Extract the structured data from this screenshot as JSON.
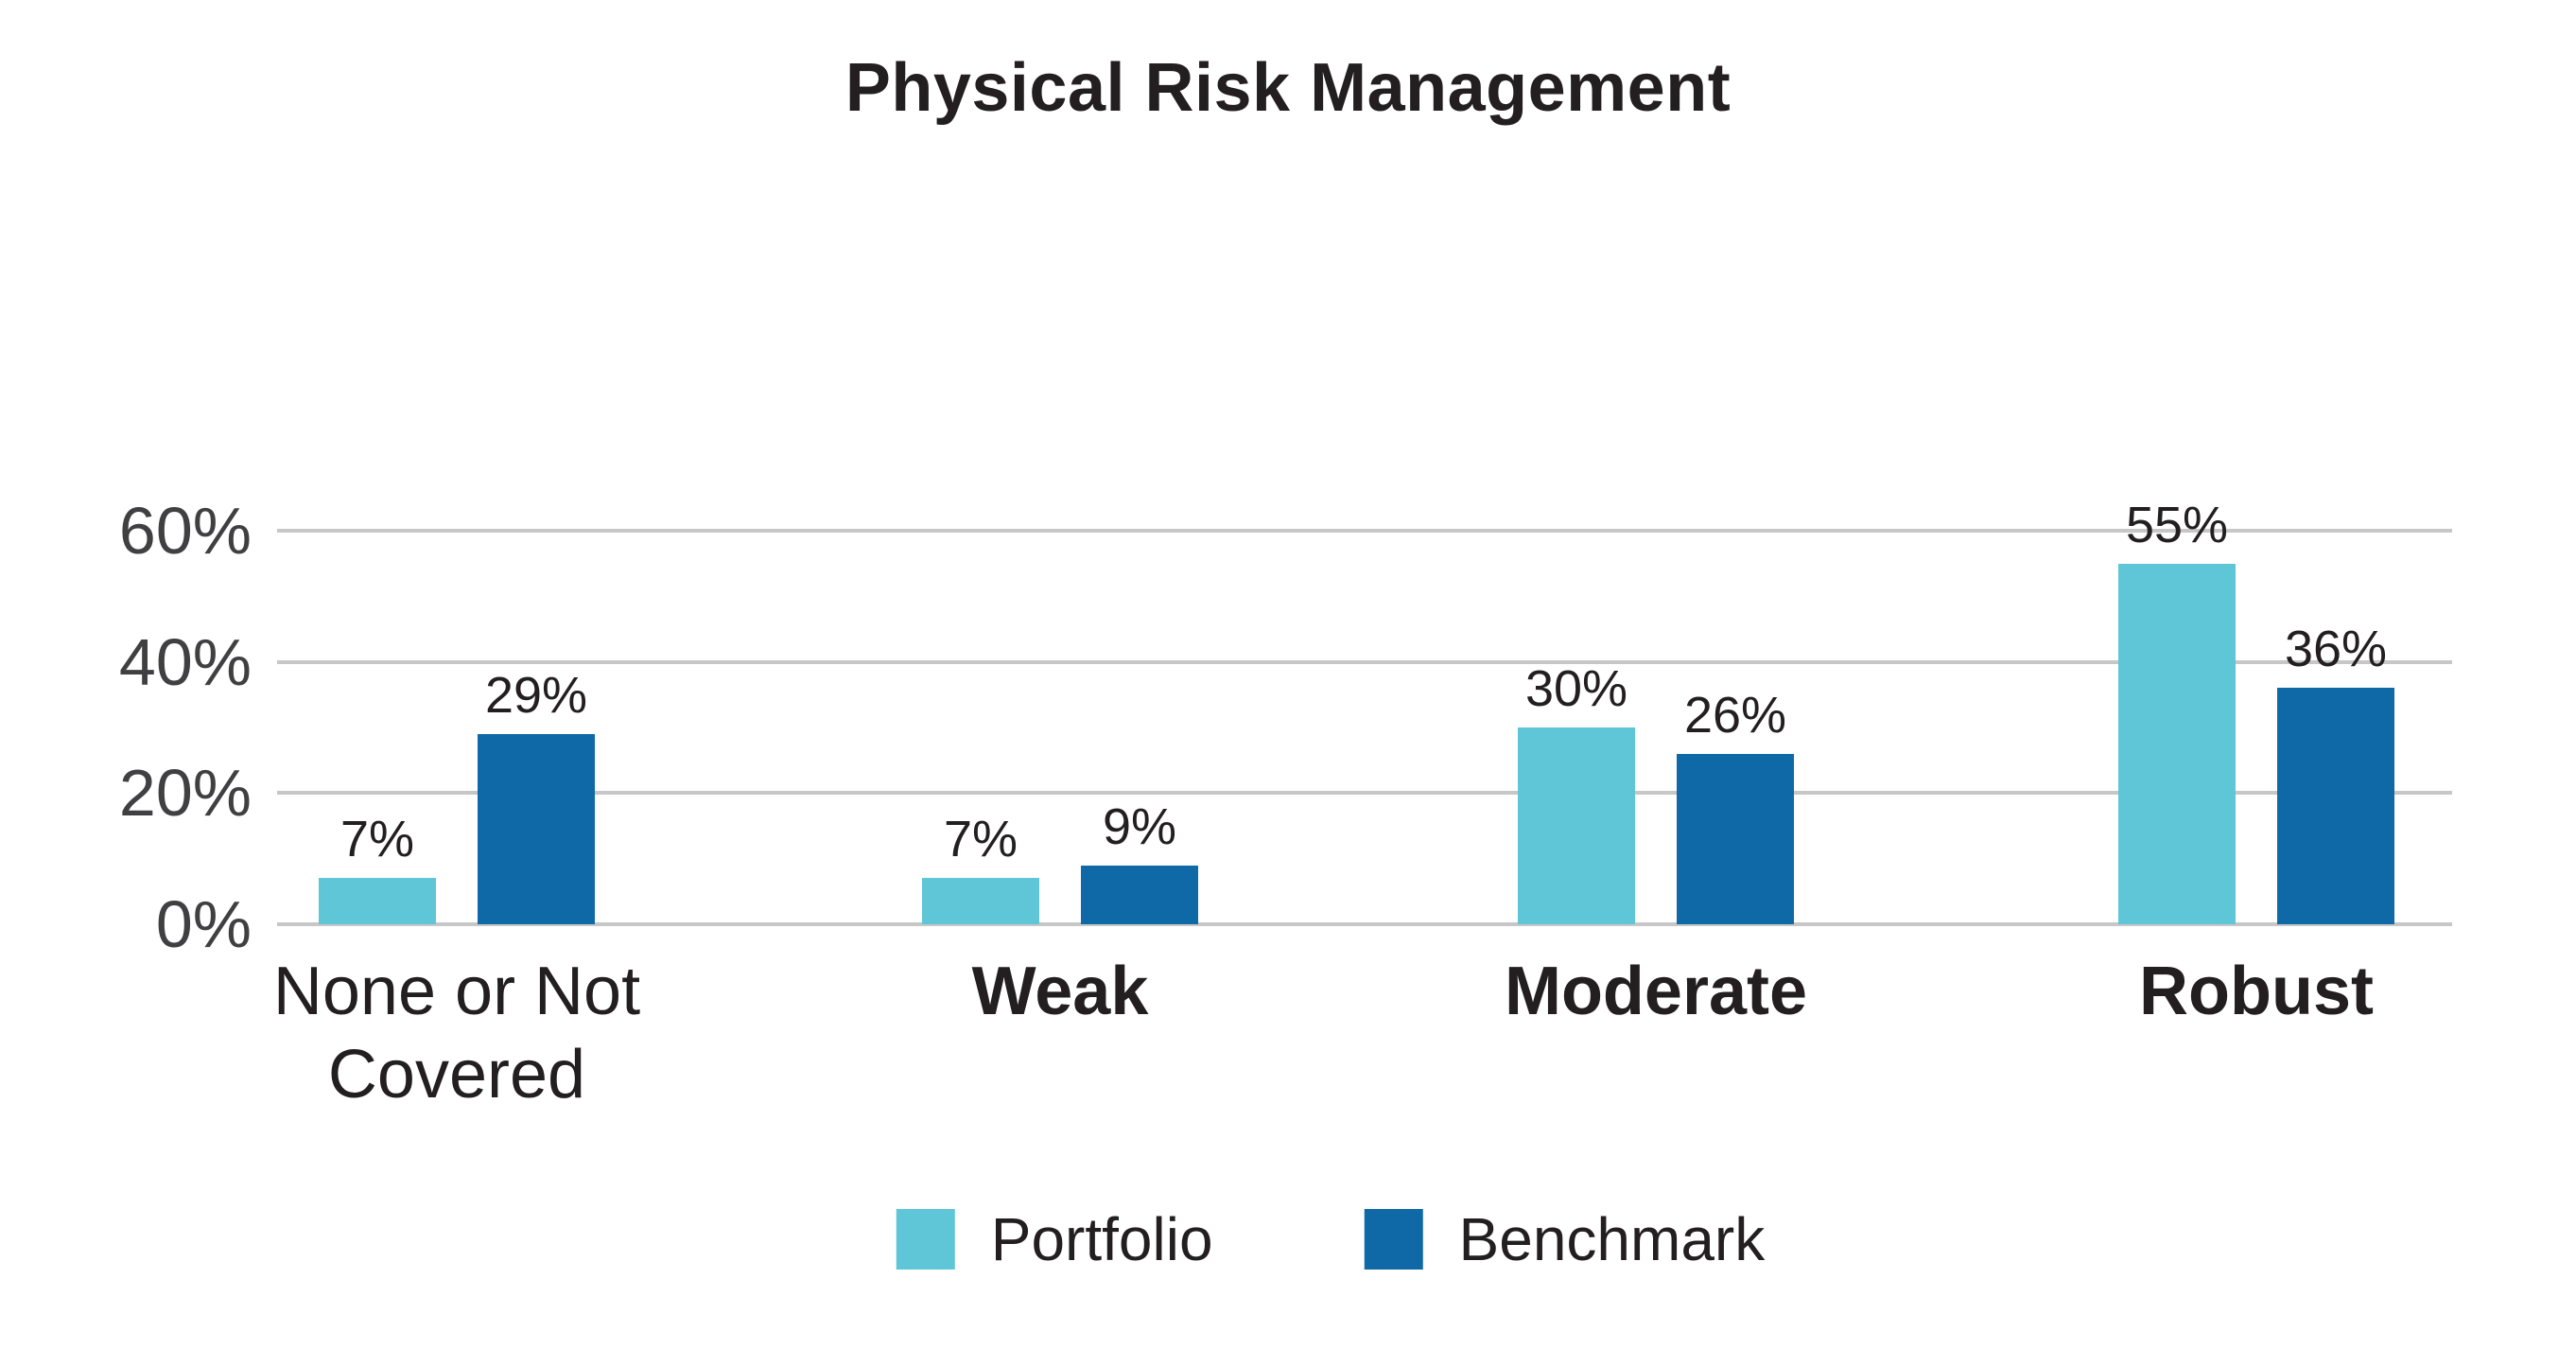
{
  "chart_data": {
    "type": "bar",
    "title": "Physical Risk Management",
    "categories": [
      "None or Not Covered",
      "Weak",
      "Moderate",
      "Robust"
    ],
    "series": [
      {
        "name": "Portfolio",
        "color": "#5FC6D7",
        "values": [
          7,
          7,
          30,
          55
        ],
        "data_labels": [
          "7%",
          "7%",
          "30%",
          "55%"
        ]
      },
      {
        "name": "Benchmark",
        "color": "#0E69A6",
        "values": [
          29,
          9,
          26,
          36
        ],
        "data_labels": [
          "29%",
          "9%",
          "26%",
          "36%"
        ]
      }
    ],
    "y_axis": {
      "tick_labels": [
        "0%",
        "20%",
        "40%",
        "60%"
      ],
      "tick_values": [
        0,
        20,
        40,
        60
      ],
      "min": 0,
      "max": 60,
      "gridlines": true,
      "gridline_color": "#C7C7C8"
    },
    "x_axis": {
      "category_bold": [
        false,
        true,
        true,
        true
      ]
    },
    "legend_position": "bottom",
    "ylim": [
      0,
      60
    ]
  },
  "legend": {
    "items": [
      {
        "label": "Portfolio",
        "color": "#5FC6D7"
      },
      {
        "label": "Benchmark",
        "color": "#0E69A6"
      }
    ]
  },
  "styles": {
    "title_color": "#231F20",
    "axis_label_color": "#404042",
    "value_label_color": "#231F20",
    "background": "#FFFFFF"
  }
}
